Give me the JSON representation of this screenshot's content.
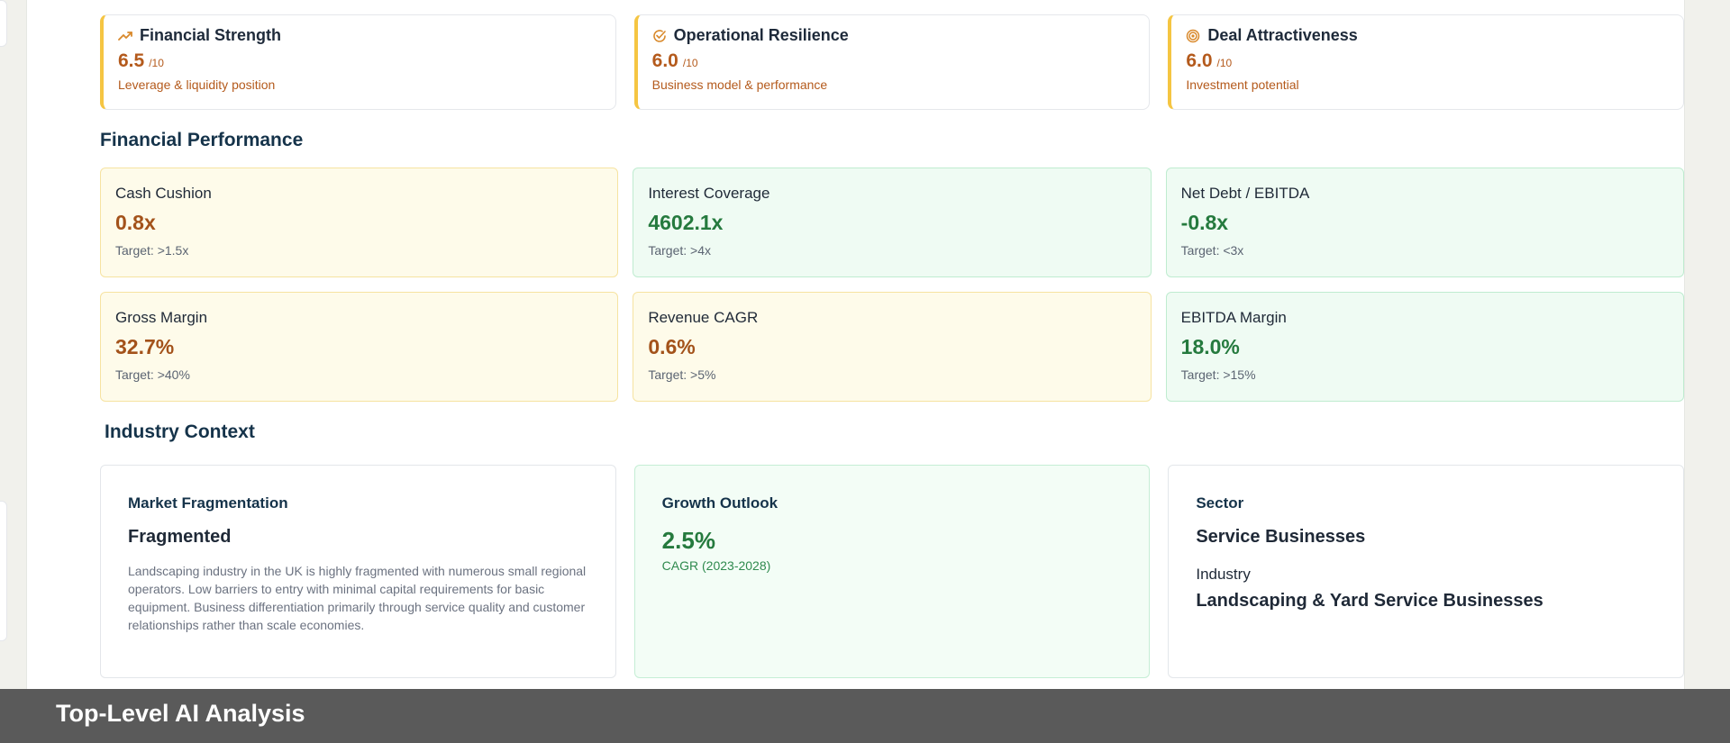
{
  "scores": [
    {
      "title": "Financial Strength",
      "value": "6.5",
      "max": "/10",
      "desc": "Leverage & liquidity position",
      "icon": "trending-up-icon"
    },
    {
      "title": "Operational Resilience",
      "value": "6.0",
      "max": "/10",
      "desc": "Business model & performance",
      "icon": "check-circle-icon"
    },
    {
      "title": "Deal Attractiveness",
      "value": "6.0",
      "max": "/10",
      "desc": "Investment potential",
      "icon": "target-icon"
    }
  ],
  "financial": {
    "title": "Financial Performance",
    "metrics": [
      {
        "label": "Cash Cushion",
        "value": "0.8x",
        "target": "Target: >1.5x",
        "status": "warn"
      },
      {
        "label": "Interest Coverage",
        "value": "4602.1x",
        "target": "Target: >4x",
        "status": "good"
      },
      {
        "label": "Net Debt / EBITDA",
        "value": "-0.8x",
        "target": "Target: <3x",
        "status": "good"
      },
      {
        "label": "Gross Margin",
        "value": "32.7%",
        "target": "Target: >40%",
        "status": "warn"
      },
      {
        "label": "Revenue CAGR",
        "value": "0.6%",
        "target": "Target: >5%",
        "status": "warn"
      },
      {
        "label": "EBITDA Margin",
        "value": "18.0%",
        "target": "Target: >15%",
        "status": "good"
      }
    ]
  },
  "industry": {
    "title": "Industry Context",
    "fragmentation": {
      "title": "Market Fragmentation",
      "value": "Fragmented",
      "desc": "Landscaping industry in the UK is highly fragmented with numerous small regional operators. Low barriers to entry with minimal capital requirements for basic equipment. Business differentiation primarily through service quality and customer relationships rather than scale economies."
    },
    "growth": {
      "title": "Growth Outlook",
      "value": "2.5%",
      "sub": "CAGR (2023-2028)"
    },
    "sector": {
      "title": "Sector",
      "value": "Service Businesses",
      "industry_label": "Industry",
      "industry_value": "Landscaping & Yard Service Businesses"
    }
  },
  "bottom_bar": {
    "title": "Top-Level AI Analysis"
  },
  "colors": {
    "accent": "#f5c542",
    "warn_text": "#a3521a",
    "good_text": "#257a3e",
    "heading": "#15334a"
  }
}
